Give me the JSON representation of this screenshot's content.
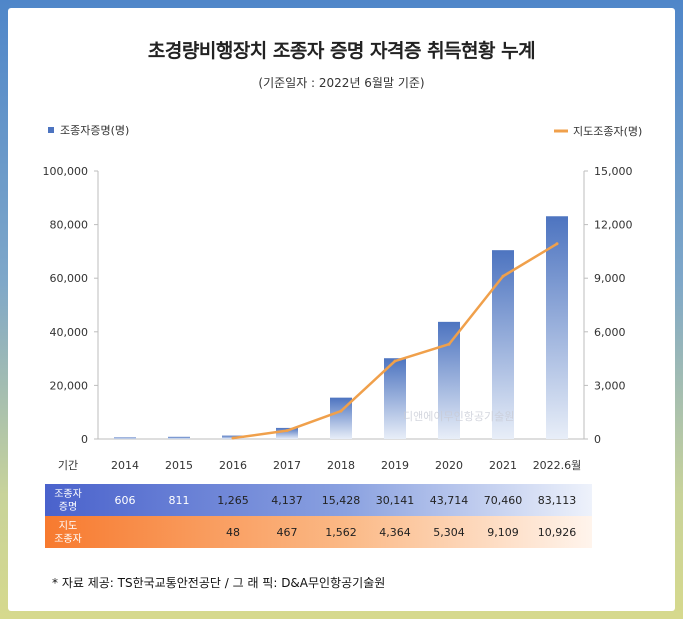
{
  "title": "초경량비행장치 조종자 증명 자격증 취득현황 누계",
  "subtitle": "(기준일자 : 2022년 6월말 기준)",
  "source": "* 자료 제공: TS한국교통안전공단  /  그 래 픽: D&A무인항공기술원",
  "watermark": "디앤에이무인항공기술원",
  "colors": {
    "bar_top": "#4d74c0",
    "bar_bottom": "#e8eef8",
    "line": "#f0a04b",
    "row1": "#4f6fd0",
    "row2": "#f7863d"
  },
  "chart_data": {
    "type": "bar",
    "categories": [
      "2014",
      "2015",
      "2016",
      "2017",
      "2018",
      "2019",
      "2020",
      "2021",
      "2022.6월"
    ],
    "series": [
      {
        "name": "조종자증명(명)",
        "type": "bar",
        "axis": "left",
        "values": [
          606,
          811,
          1265,
          4137,
          15428,
          30141,
          43714,
          70460,
          83113
        ],
        "labels": [
          "606",
          "811",
          "1,265",
          "4,137",
          "15,428",
          "30,141",
          "43,714",
          "70,460",
          "83,113"
        ]
      },
      {
        "name": "지도조종자(명)",
        "type": "line",
        "axis": "right",
        "values": [
          null,
          null,
          48,
          467,
          1562,
          4364,
          5304,
          9109,
          10926
        ],
        "labels": [
          "",
          "",
          "48",
          "467",
          "1,562",
          "4,364",
          "5,304",
          "9,109",
          "10,926"
        ]
      }
    ],
    "left_axis": {
      "min": 0,
      "max": 100000,
      "ticks": [
        "0",
        "20,000",
        "40,000",
        "60,000",
        "80,000",
        "100,000"
      ]
    },
    "right_axis": {
      "min": 0,
      "max": 15000,
      "ticks": [
        "0",
        "3,000",
        "6,000",
        "9,000",
        "12,000",
        "15,000"
      ]
    },
    "legend": {
      "bar": "조종자증명(명)",
      "line": "지도조종자(명)"
    },
    "table": {
      "header_label": "기간",
      "row1_label": [
        "조종자",
        "증명"
      ],
      "row2_label": [
        "지도",
        "조종자"
      ]
    }
  }
}
